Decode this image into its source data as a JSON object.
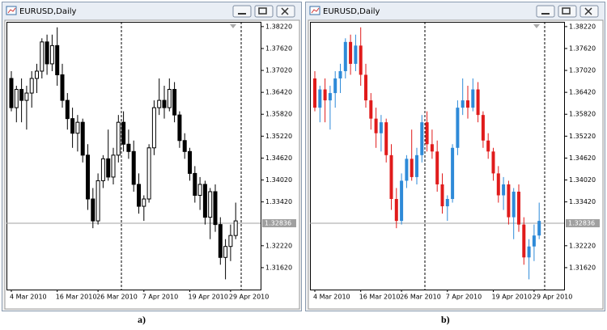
{
  "chart_data": [
    {
      "type": "candlestick",
      "title": "EURUSD,Daily",
      "caption": "a)",
      "categories": [
        "4 Mar 2010",
        null,
        null,
        null,
        null,
        null,
        null,
        null,
        null,
        "16 Mar 2010",
        null,
        null,
        null,
        null,
        null,
        null,
        null,
        "26 Mar 2010",
        null,
        null,
        null,
        null,
        null,
        null,
        null,
        null,
        "7 Apr 2010",
        null,
        null,
        null,
        null,
        null,
        null,
        null,
        null,
        "19 Apr 2010",
        null,
        null,
        null,
        null,
        null,
        null,
        null,
        "29 Apr 2010",
        null
      ],
      "open": [
        1.368,
        1.36,
        1.365,
        1.362,
        1.364,
        1.368,
        1.37,
        1.378,
        1.372,
        1.377,
        1.369,
        1.362,
        1.357,
        1.353,
        1.356,
        1.347,
        1.335,
        1.329,
        1.34,
        1.346,
        1.341,
        1.347,
        1.356,
        1.35,
        1.348,
        1.339,
        1.333,
        1.335,
        1.349,
        1.36,
        1.362,
        1.36,
        1.365,
        1.358,
        1.351,
        1.348,
        1.342,
        1.336,
        1.339,
        1.33,
        1.337,
        1.328,
        1.319,
        1.322,
        1.325
      ],
      "high": [
        1.37,
        1.366,
        1.368,
        1.366,
        1.37,
        1.372,
        1.379,
        1.38,
        1.38,
        1.382,
        1.372,
        1.364,
        1.36,
        1.358,
        1.357,
        1.35,
        1.338,
        1.342,
        1.347,
        1.354,
        1.349,
        1.358,
        1.359,
        1.354,
        1.351,
        1.342,
        1.336,
        1.35,
        1.362,
        1.368,
        1.366,
        1.368,
        1.367,
        1.359,
        1.353,
        1.349,
        1.344,
        1.341,
        1.34,
        1.338,
        1.339,
        1.33,
        1.324,
        1.328,
        1.334
      ],
      "low": [
        1.359,
        1.356,
        1.356,
        1.354,
        1.36,
        1.364,
        1.368,
        1.369,
        1.37,
        1.366,
        1.36,
        1.354,
        1.349,
        1.348,
        1.345,
        1.332,
        1.327,
        1.328,
        1.338,
        1.34,
        1.339,
        1.345,
        1.348,
        1.346,
        1.337,
        1.331,
        1.329,
        1.334,
        1.347,
        1.358,
        1.357,
        1.359,
        1.356,
        1.349,
        1.346,
        1.34,
        1.334,
        1.332,
        1.328,
        1.324,
        1.326,
        1.317,
        1.313,
        1.318,
        1.324
      ],
      "close": [
        1.36,
        1.365,
        1.362,
        1.364,
        1.368,
        1.37,
        1.378,
        1.372,
        1.377,
        1.369,
        1.362,
        1.357,
        1.353,
        1.356,
        1.347,
        1.335,
        1.329,
        1.34,
        1.346,
        1.341,
        1.347,
        1.356,
        1.35,
        1.348,
        1.339,
        1.333,
        1.335,
        1.349,
        1.36,
        1.362,
        1.36,
        1.365,
        1.358,
        1.351,
        1.348,
        1.342,
        1.336,
        1.339,
        1.33,
        1.337,
        1.328,
        1.319,
        1.322,
        1.325,
        1.329
      ],
      "up_color": "#ffffff",
      "down_color": "#000000",
      "wick_color": "#000000",
      "ylim": [
        1.3102,
        1.3835
      ],
      "yticks": [
        {
          "value": 1.3822,
          "label": "1.38220"
        },
        {
          "value": 1.3762,
          "label": "1.37620"
        },
        {
          "value": 1.3702,
          "label": "1.37020"
        },
        {
          "value": 1.3642,
          "label": "1.36420"
        },
        {
          "value": 1.3582,
          "label": "1.35820"
        },
        {
          "value": 1.3522,
          "label": "1.35220"
        },
        {
          "value": 1.3462,
          "label": "1.34620"
        },
        {
          "value": 1.3402,
          "label": "1.34020"
        },
        {
          "value": 1.3342,
          "label": "1.33420"
        },
        {
          "value": 1.3222,
          "label": "1.32220"
        },
        {
          "value": 1.3162,
          "label": "1.31620"
        }
      ],
      "price_line": 1.32836
    },
    {
      "type": "candlestick",
      "title": "EURUSD,Daily",
      "caption": "b)",
      "categories": [
        "4 Mar 2010",
        null,
        null,
        null,
        null,
        null,
        null,
        null,
        null,
        "16 Mar 2010",
        null,
        null,
        null,
        null,
        null,
        null,
        null,
        "26 Mar 2010",
        null,
        null,
        null,
        null,
        null,
        null,
        null,
        null,
        "7 Apr 2010",
        null,
        null,
        null,
        null,
        null,
        null,
        null,
        null,
        "19 Apr 2010",
        null,
        null,
        null,
        null,
        null,
        null,
        null,
        "29 Apr 2010",
        null
      ],
      "open": [
        1.368,
        1.36,
        1.365,
        1.362,
        1.364,
        1.368,
        1.37,
        1.378,
        1.372,
        1.377,
        1.369,
        1.362,
        1.357,
        1.353,
        1.356,
        1.347,
        1.335,
        1.329,
        1.34,
        1.346,
        1.341,
        1.347,
        1.356,
        1.35,
        1.348,
        1.339,
        1.333,
        1.335,
        1.349,
        1.36,
        1.362,
        1.36,
        1.365,
        1.358,
        1.351,
        1.348,
        1.342,
        1.336,
        1.339,
        1.33,
        1.337,
        1.328,
        1.319,
        1.322,
        1.325
      ],
      "high": [
        1.37,
        1.366,
        1.368,
        1.366,
        1.37,
        1.372,
        1.379,
        1.38,
        1.38,
        1.382,
        1.372,
        1.364,
        1.36,
        1.358,
        1.357,
        1.35,
        1.338,
        1.342,
        1.347,
        1.354,
        1.349,
        1.358,
        1.359,
        1.354,
        1.351,
        1.342,
        1.336,
        1.35,
        1.362,
        1.368,
        1.366,
        1.368,
        1.367,
        1.359,
        1.353,
        1.349,
        1.344,
        1.341,
        1.34,
        1.338,
        1.339,
        1.33,
        1.324,
        1.328,
        1.334
      ],
      "low": [
        1.359,
        1.356,
        1.356,
        1.354,
        1.36,
        1.364,
        1.368,
        1.369,
        1.37,
        1.366,
        1.36,
        1.354,
        1.349,
        1.348,
        1.345,
        1.332,
        1.327,
        1.328,
        1.338,
        1.34,
        1.339,
        1.345,
        1.348,
        1.346,
        1.337,
        1.331,
        1.329,
        1.334,
        1.347,
        1.358,
        1.357,
        1.359,
        1.356,
        1.349,
        1.346,
        1.34,
        1.334,
        1.332,
        1.328,
        1.324,
        1.326,
        1.317,
        1.313,
        1.318,
        1.324
      ],
      "close": [
        1.36,
        1.365,
        1.362,
        1.364,
        1.368,
        1.37,
        1.378,
        1.372,
        1.377,
        1.369,
        1.362,
        1.357,
        1.353,
        1.356,
        1.347,
        1.335,
        1.329,
        1.34,
        1.346,
        1.341,
        1.347,
        1.356,
        1.35,
        1.348,
        1.339,
        1.333,
        1.335,
        1.349,
        1.36,
        1.362,
        1.36,
        1.365,
        1.358,
        1.351,
        1.348,
        1.342,
        1.336,
        1.339,
        1.33,
        1.337,
        1.328,
        1.319,
        1.322,
        1.325,
        1.329
      ],
      "up_color": "#2e8ad8",
      "down_color": "#e01b1b",
      "ylim": [
        1.3102,
        1.3835
      ],
      "yticks": [
        {
          "value": 1.3822,
          "label": "1.38220"
        },
        {
          "value": 1.3762,
          "label": "1.37620"
        },
        {
          "value": 1.3702,
          "label": "1.37020"
        },
        {
          "value": 1.3642,
          "label": "1.36420"
        },
        {
          "value": 1.3582,
          "label": "1.35820"
        },
        {
          "value": 1.3522,
          "label": "1.35220"
        },
        {
          "value": 1.3462,
          "label": "1.34620"
        },
        {
          "value": 1.3402,
          "label": "1.34020"
        },
        {
          "value": 1.3342,
          "label": "1.33420"
        },
        {
          "value": 1.3222,
          "label": "1.32220"
        },
        {
          "value": 1.3162,
          "label": "1.31620"
        }
      ],
      "price_line": 1.32836
    }
  ]
}
